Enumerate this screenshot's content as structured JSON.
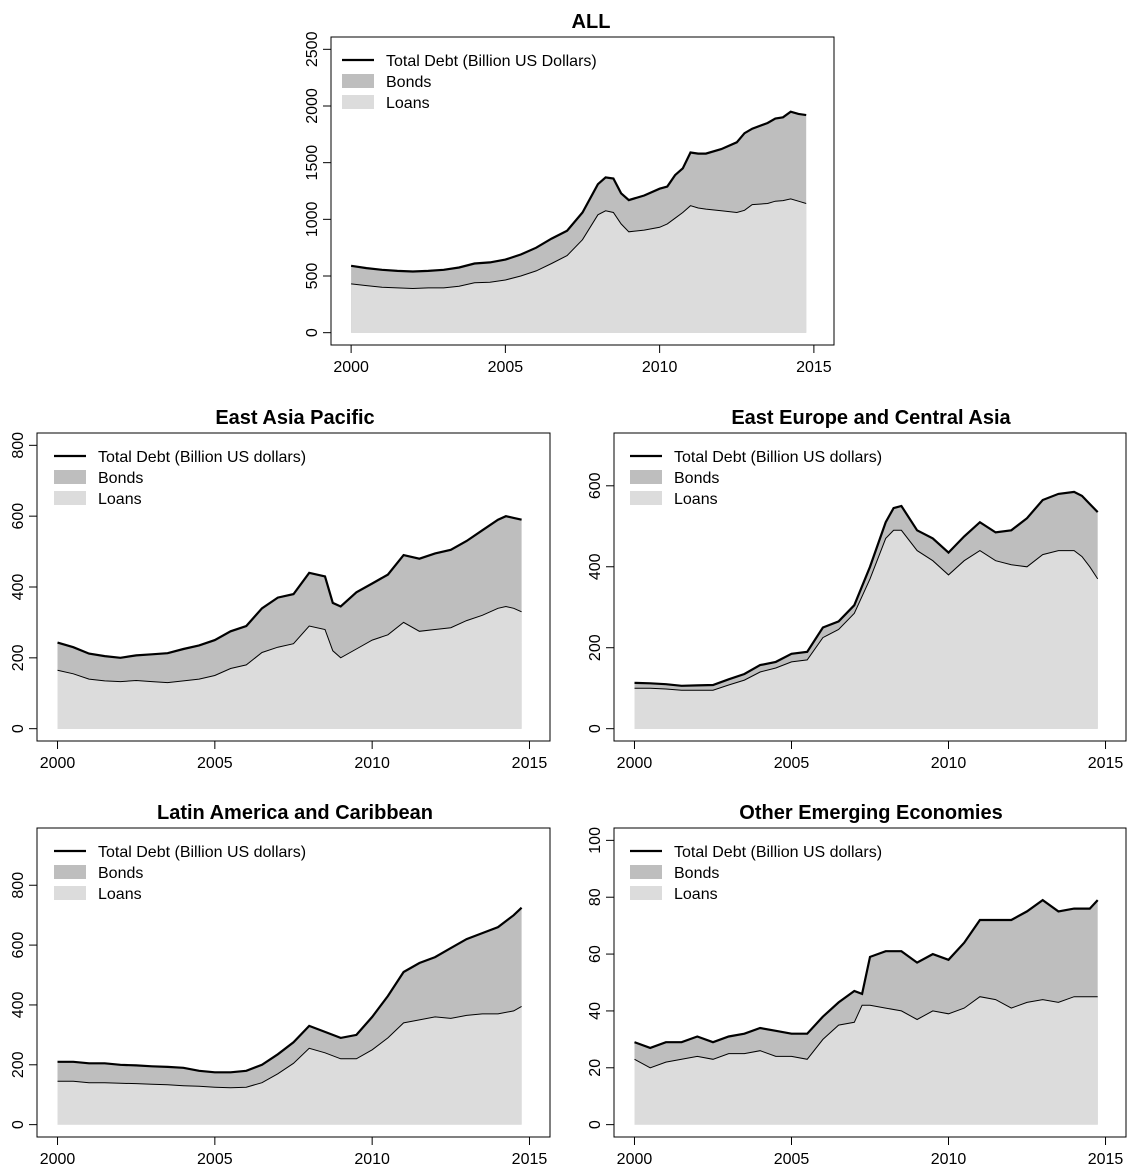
{
  "colors": {
    "loans": "#dcdcdc",
    "bonds": "#bebebe",
    "total_line": "#000000",
    "axis": "#000000"
  },
  "chart_data": [
    {
      "type": "area",
      "title": "ALL",
      "xlabel": "",
      "ylabel": "",
      "xlim": [
        2000,
        2015
      ],
      "ylim": [
        0,
        2500
      ],
      "x_ticks": [
        2000,
        2005,
        2010,
        2015
      ],
      "y_ticks": [
        0,
        500,
        1000,
        1500,
        2000,
        2500
      ],
      "legend": {
        "position": "top-left",
        "entries": [
          "Total Debt (Billion US Dollars)",
          "Bonds",
          "Loans"
        ]
      },
      "series": [
        {
          "name": "Loans",
          "role": "loans",
          "x": [
            2000,
            2000.5,
            2001,
            2001.5,
            2002,
            2002.5,
            2003,
            2003.5,
            2004,
            2004.5,
            2005,
            2005.5,
            2006,
            2006.5,
            2007,
            2007.5,
            2008,
            2008.25,
            2008.5,
            2008.75,
            2009,
            2009.5,
            2010,
            2010.25,
            2010.5,
            2010.75,
            2011,
            2011.25,
            2011.5,
            2012,
            2012.5,
            2012.75,
            2013,
            2013.5,
            2013.75,
            2014,
            2014.25,
            2014.5,
            2014.75
          ],
          "values": [
            430,
            415,
            400,
            395,
            390,
            395,
            395,
            410,
            440,
            445,
            465,
            500,
            545,
            610,
            680,
            820,
            1040,
            1075,
            1060,
            960,
            890,
            905,
            930,
            960,
            1010,
            1060,
            1120,
            1100,
            1090,
            1075,
            1060,
            1080,
            1130,
            1140,
            1160,
            1165,
            1180,
            1160,
            1140
          ]
        },
        {
          "name": "Total Debt (Billion US Dollars)",
          "role": "total",
          "x": [
            2000,
            2000.5,
            2001,
            2001.5,
            2002,
            2002.5,
            2003,
            2003.5,
            2004,
            2004.5,
            2005,
            2005.5,
            2006,
            2006.5,
            2007,
            2007.5,
            2008,
            2008.25,
            2008.5,
            2008.75,
            2009,
            2009.5,
            2010,
            2010.25,
            2010.5,
            2010.75,
            2011,
            2011.25,
            2011.5,
            2012,
            2012.5,
            2012.75,
            2013,
            2013.5,
            2013.75,
            2014,
            2014.25,
            2014.5,
            2014.75
          ],
          "values": [
            590,
            570,
            555,
            545,
            540,
            545,
            555,
            575,
            610,
            620,
            645,
            690,
            750,
            830,
            900,
            1060,
            1310,
            1370,
            1360,
            1230,
            1170,
            1210,
            1270,
            1290,
            1390,
            1450,
            1590,
            1580,
            1580,
            1620,
            1680,
            1760,
            1800,
            1850,
            1890,
            1900,
            1950,
            1930,
            1920
          ]
        }
      ]
    },
    {
      "type": "area",
      "title": "East Asia Pacific",
      "xlabel": "",
      "ylabel": "",
      "xlim": [
        2000,
        2015
      ],
      "ylim": [
        0,
        800
      ],
      "x_ticks": [
        2000,
        2005,
        2010,
        2015
      ],
      "y_ticks": [
        0,
        200,
        400,
        600,
        800
      ],
      "legend": {
        "position": "top-left",
        "entries": [
          "Total Debt (Billion US dollars)",
          "Bonds",
          "Loans"
        ]
      },
      "series": [
        {
          "name": "Loans",
          "role": "loans",
          "x": [
            2000,
            2000.5,
            2001,
            2001.5,
            2002,
            2002.5,
            2003,
            2003.5,
            2004,
            2004.5,
            2005,
            2005.5,
            2006,
            2006.5,
            2007,
            2007.5,
            2008,
            2008.5,
            2008.75,
            2009,
            2009.5,
            2010,
            2010.5,
            2011,
            2011.5,
            2012,
            2012.5,
            2013,
            2013.5,
            2014,
            2014.25,
            2014.5,
            2014.75
          ],
          "values": [
            165,
            155,
            140,
            135,
            133,
            136,
            133,
            130,
            135,
            140,
            150,
            170,
            180,
            215,
            230,
            240,
            290,
            280,
            220,
            200,
            225,
            250,
            265,
            300,
            275,
            280,
            285,
            305,
            320,
            340,
            345,
            340,
            330
          ]
        },
        {
          "name": "Total Debt (Billion US dollars)",
          "role": "total",
          "x": [
            2000,
            2000.5,
            2001,
            2001.5,
            2002,
            2002.5,
            2003,
            2003.5,
            2004,
            2004.5,
            2005,
            2005.5,
            2006,
            2006.5,
            2007,
            2007.5,
            2008,
            2008.5,
            2008.75,
            2009,
            2009.5,
            2010,
            2010.5,
            2011,
            2011.5,
            2012,
            2012.5,
            2013,
            2013.5,
            2014,
            2014.25,
            2014.5,
            2014.75
          ],
          "values": [
            243,
            230,
            212,
            205,
            200,
            207,
            210,
            213,
            225,
            235,
            250,
            275,
            290,
            340,
            370,
            380,
            440,
            430,
            355,
            345,
            385,
            410,
            435,
            490,
            480,
            495,
            505,
            530,
            560,
            590,
            600,
            595,
            590
          ]
        }
      ]
    },
    {
      "type": "area",
      "title": "East Europe and Central Asia",
      "xlabel": "",
      "ylabel": "",
      "xlim": [
        2000,
        2015
      ],
      "ylim": [
        0,
        700
      ],
      "x_ticks": [
        2000,
        2005,
        2010,
        2015
      ],
      "y_ticks": [
        0,
        200,
        400,
        600
      ],
      "legend": {
        "position": "top-left",
        "entries": [
          "Total Debt (Billion US dollars)",
          "Bonds",
          "Loans"
        ]
      },
      "series": [
        {
          "name": "Loans",
          "role": "loans",
          "x": [
            2000,
            2000.5,
            2001,
            2001.5,
            2002,
            2002.5,
            2003,
            2003.5,
            2004,
            2004.5,
            2005,
            2005.5,
            2006,
            2006.5,
            2007,
            2007.5,
            2008,
            2008.25,
            2008.5,
            2009,
            2009.5,
            2010,
            2010.5,
            2011,
            2011.5,
            2012,
            2012.5,
            2013,
            2013.5,
            2014,
            2014.25,
            2014.5,
            2014.75
          ],
          "values": [
            100,
            100,
            98,
            95,
            95,
            95,
            108,
            120,
            140,
            150,
            165,
            170,
            225,
            245,
            285,
            370,
            470,
            490,
            490,
            440,
            415,
            380,
            415,
            440,
            415,
            405,
            400,
            430,
            440,
            440,
            425,
            400,
            370
          ]
        },
        {
          "name": "Total Debt (Billion US dollars)",
          "role": "total",
          "x": [
            2000,
            2000.5,
            2001,
            2001.5,
            2002,
            2002.5,
            2003,
            2003.5,
            2004,
            2004.5,
            2005,
            2005.5,
            2006,
            2006.5,
            2007,
            2007.5,
            2008,
            2008.25,
            2008.5,
            2009,
            2009.5,
            2010,
            2010.5,
            2011,
            2011.5,
            2012,
            2012.5,
            2013,
            2013.5,
            2014,
            2014.25,
            2014.5,
            2014.75
          ],
          "values": [
            113,
            112,
            110,
            106,
            107,
            108,
            122,
            135,
            157,
            165,
            185,
            190,
            250,
            265,
            305,
            400,
            510,
            545,
            550,
            490,
            470,
            435,
            475,
            510,
            485,
            490,
            520,
            565,
            580,
            585,
            575,
            555,
            535
          ]
        }
      ]
    },
    {
      "type": "area",
      "title": "Latin America and Caribbean",
      "xlabel": "",
      "ylabel": "",
      "xlim": [
        2000,
        2015
      ],
      "ylim": [
        0,
        950
      ],
      "x_ticks": [
        2000,
        2005,
        2010,
        2015
      ],
      "y_ticks": [
        0,
        200,
        400,
        600,
        800
      ],
      "legend": {
        "position": "top-left",
        "entries": [
          "Total Debt (Billion US dollars)",
          "Bonds",
          "Loans"
        ]
      },
      "series": [
        {
          "name": "Loans",
          "role": "loans",
          "x": [
            2000,
            2000.5,
            2001,
            2001.5,
            2002,
            2002.5,
            2003,
            2003.5,
            2004,
            2004.5,
            2005,
            2005.5,
            2006,
            2006.5,
            2007,
            2007.5,
            2008,
            2008.5,
            2009,
            2009.5,
            2010,
            2010.5,
            2011,
            2011.5,
            2012,
            2012.5,
            2013,
            2013.5,
            2014,
            2014.5,
            2014.75
          ],
          "values": [
            145,
            145,
            140,
            140,
            138,
            137,
            135,
            133,
            130,
            128,
            125,
            123,
            125,
            140,
            170,
            205,
            255,
            240,
            220,
            220,
            250,
            290,
            340,
            350,
            360,
            355,
            365,
            370,
            370,
            380,
            395
          ]
        },
        {
          "name": "Total Debt (Billion US dollars)",
          "role": "total",
          "x": [
            2000,
            2000.5,
            2001,
            2001.5,
            2002,
            2002.5,
            2003,
            2003.5,
            2004,
            2004.5,
            2005,
            2005.5,
            2006,
            2006.5,
            2007,
            2007.5,
            2008,
            2008.5,
            2009,
            2009.5,
            2010,
            2010.5,
            2011,
            2011.5,
            2012,
            2012.5,
            2013,
            2013.5,
            2014,
            2014.5,
            2014.75
          ],
          "values": [
            210,
            210,
            205,
            205,
            200,
            198,
            195,
            193,
            190,
            180,
            175,
            175,
            180,
            200,
            235,
            275,
            330,
            310,
            290,
            300,
            360,
            430,
            510,
            540,
            560,
            590,
            620,
            640,
            660,
            700,
            725
          ]
        }
      ]
    },
    {
      "type": "area",
      "title": "Other Emerging Economies",
      "xlabel": "",
      "ylabel": "",
      "xlim": [
        2000,
        2015
      ],
      "ylim": [
        0,
        100
      ],
      "x_ticks": [
        2000,
        2005,
        2010,
        2015
      ],
      "y_ticks": [
        0,
        20,
        40,
        60,
        80,
        100
      ],
      "legend": {
        "position": "top-left",
        "entries": [
          "Total Debt (Billion US dollars)",
          "Bonds",
          "Loans"
        ]
      },
      "series": [
        {
          "name": "Loans",
          "role": "loans",
          "x": [
            2000,
            2000.5,
            2001,
            2001.5,
            2002,
            2002.5,
            2003,
            2003.5,
            2004,
            2004.5,
            2005,
            2005.5,
            2006,
            2006.5,
            2007,
            2007.25,
            2007.5,
            2008,
            2008.5,
            2009,
            2009.5,
            2010,
            2010.5,
            2011,
            2011.5,
            2012,
            2012.5,
            2013,
            2013.5,
            2014,
            2014.5,
            2014.75
          ],
          "values": [
            23,
            20,
            22,
            23,
            24,
            23,
            25,
            25,
            26,
            24,
            24,
            23,
            30,
            35,
            36,
            42,
            42,
            41,
            40,
            37,
            40,
            39,
            41,
            45,
            44,
            41,
            43,
            44,
            43,
            45,
            45,
            45
          ]
        },
        {
          "name": "Total Debt (Billion US dollars)",
          "role": "total",
          "x": [
            2000,
            2000.5,
            2001,
            2001.5,
            2002,
            2002.5,
            2003,
            2003.5,
            2004,
            2004.5,
            2005,
            2005.5,
            2006,
            2006.5,
            2007,
            2007.25,
            2007.5,
            2008,
            2008.5,
            2009,
            2009.5,
            2010,
            2010.5,
            2011,
            2011.5,
            2012,
            2012.5,
            2013,
            2013.5,
            2014,
            2014.5,
            2014.75
          ],
          "values": [
            29,
            27,
            29,
            29,
            31,
            29,
            31,
            32,
            34,
            33,
            32,
            32,
            38,
            43,
            47,
            46,
            59,
            61,
            61,
            57,
            60,
            58,
            64,
            72,
            72,
            72,
            75,
            79,
            75,
            76,
            76,
            79
          ]
        }
      ]
    }
  ]
}
